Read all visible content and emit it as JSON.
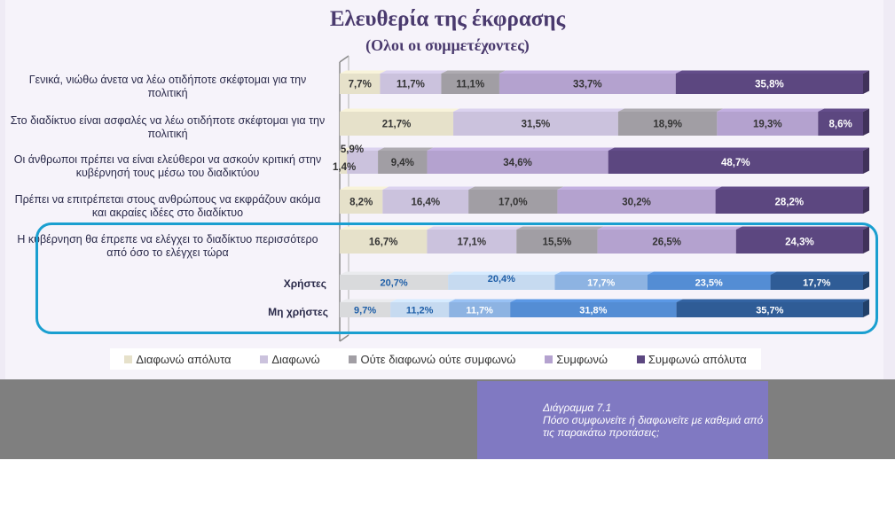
{
  "chart_data": {
    "type": "bar",
    "stacked": true,
    "orientation": "horizontal",
    "title": "Ελευθερία της έκφρασης",
    "subtitle": "(Ολοι οι συμμετέχοντες)",
    "legend_position": "bottom",
    "legend": [
      "Διαφωνώ απόλυτα",
      "Διαφωνώ",
      "Ούτε διαφωνώ ούτε συμφωνώ",
      "Συμφωνώ",
      "Συμφωνώ απόλυτα"
    ],
    "legend_colors": [
      "#e6e1ca",
      "#cbc2dd",
      "#a19ea4",
      "#b4a2cf",
      "#5c4780"
    ],
    "rows": [
      {
        "label": "Γενικά, νιώθω άνετα να λέω οτιδήποτε σκέφτομαι για την πολιτική",
        "values": [
          7.7,
          11.7,
          11.1,
          33.7,
          35.8
        ],
        "labels": [
          "7,7%",
          "11,7%",
          "11,1%",
          "33,7%",
          "35,8%"
        ]
      },
      {
        "label": "Στο διαδίκτυο είναι ασφαλές να λέω οτιδήποτε σκέφτομαι για την πολιτική",
        "values": [
          21.7,
          31.5,
          18.9,
          19.3,
          8.6
        ],
        "labels": [
          "21,7%",
          "31,5%",
          "18,9%",
          "19,3%",
          "8,6%"
        ]
      },
      {
        "label": "Οι άνθρωποι πρέπει να είναι ελεύθεροι να ασκούν κριτική στην κυβέρνησή τους μέσω του διαδικτύου",
        "values": [
          1.4,
          5.9,
          9.4,
          34.6,
          48.7
        ],
        "labels": [
          "1,4%",
          "5,9%",
          "9,4%",
          "34,6%",
          "48,7%"
        ]
      },
      {
        "label": "Πρέπει να επιτρέπεται στους ανθρώπους να εκφράζουν ακόμα και ακραίες ιδέες  στο διαδίκτυο",
        "values": [
          8.2,
          16.4,
          17.0,
          30.2,
          28.2
        ],
        "labels": [
          "8,2%",
          "16,4%",
          "17,0%",
          "30,2%",
          "28,2%"
        ]
      },
      {
        "label": "Η κυβέρνηση θα έπρεπε να ελέγχει το διαδίκτυο περισσότερο από όσο το ελέγχει τώρα",
        "values": [
          16.7,
          17.1,
          15.5,
          26.5,
          24.3
        ],
        "labels": [
          "16,7%",
          "17,1%",
          "15,5%",
          "26,5%",
          "24,3%"
        ]
      },
      {
        "label": "Χρήστες",
        "values": [
          20.7,
          20.4,
          17.7,
          23.5,
          17.7
        ],
        "labels": [
          "20,7%",
          "20,4%",
          "17,7%",
          "23,5%",
          "17,7%"
        ]
      },
      {
        "label": "Μη χρήστες",
        "values": [
          9.7,
          11.2,
          11.7,
          31.8,
          35.7
        ],
        "labels": [
          "9,7%",
          "11,2%",
          "11,7%",
          "31,8%",
          "35,7%"
        ]
      }
    ],
    "sub_colors": [
      "#d9dadc",
      "#c6daf0",
      "#8db3e2",
      "#548dd4",
      "#2f5c96"
    ]
  },
  "caption": {
    "title": "Διάγραμμα 7.1",
    "text": "Πόσο συμφωνείτε ή διαφωνείτε με καθεμιά από τις παρακάτω προτάσεις;"
  }
}
